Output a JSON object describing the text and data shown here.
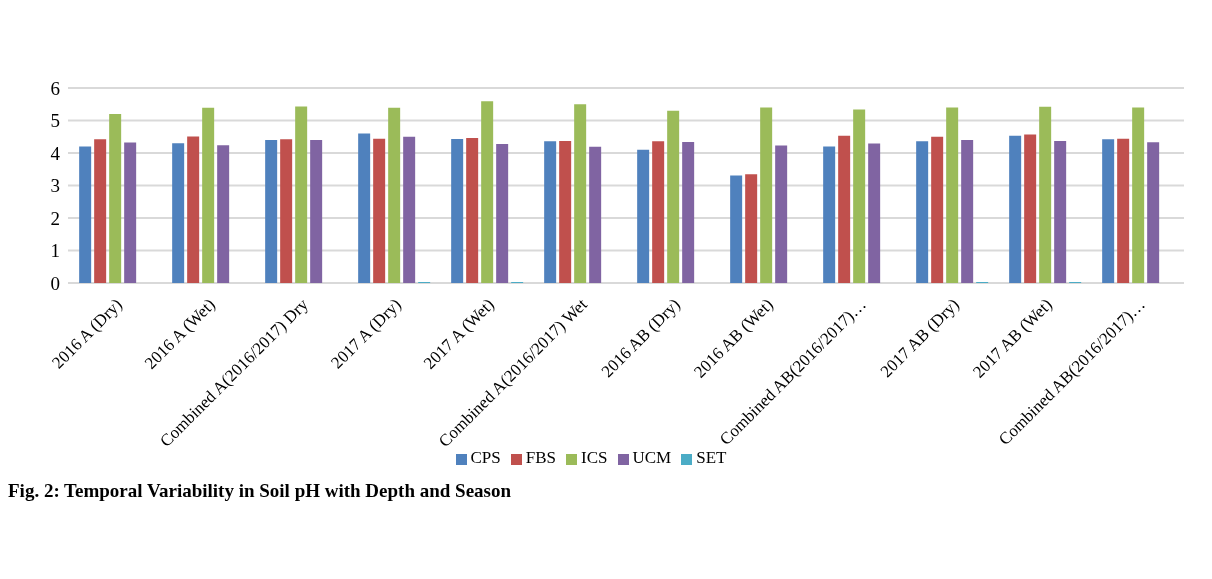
{
  "chart_data": {
    "type": "bar",
    "title": "Fig. 2: Temporal Variability in Soil pH with Depth  and Season",
    "categories": [
      "2016 A (Dry)",
      "2016 A (Wet)",
      "Combined A(2016/2017) Dry",
      "2017 A (Dry)",
      "2017 A (Wet)",
      "Combined A(2016/2017) Wet",
      "2016 AB (Dry)",
      "2016 AB (Wet)",
      "Combined AB(2016/2017)…",
      "2017 AB (Dry)",
      "2017 AB (Wet)",
      "Combined AB(2016/2017)…"
    ],
    "series": [
      {
        "name": "CPS",
        "color": "#4f81bd",
        "values": [
          4.2,
          4.3,
          4.4,
          4.6,
          4.43,
          4.36,
          4.1,
          3.31,
          4.2,
          4.36,
          4.53,
          4.42
        ]
      },
      {
        "name": "FBS",
        "color": "#c0504d",
        "values": [
          4.42,
          4.51,
          4.42,
          4.44,
          4.46,
          4.37,
          4.36,
          3.35,
          4.53,
          4.5,
          4.57,
          4.44
        ]
      },
      {
        "name": "ICS",
        "color": "#9bbb59",
        "values": [
          5.2,
          5.39,
          5.43,
          5.39,
          5.59,
          5.5,
          5.3,
          5.4,
          5.34,
          5.4,
          5.42,
          5.4
        ]
      },
      {
        "name": "UCM",
        "color": "#8064a2",
        "values": [
          4.32,
          4.24,
          4.4,
          4.5,
          4.28,
          4.19,
          4.34,
          4.23,
          4.29,
          4.4,
          4.37,
          4.33
        ]
      },
      {
        "name": "SET",
        "color": "#4bacc6",
        "values": [
          0,
          0,
          0,
          0.03,
          0.03,
          0,
          0,
          0,
          0,
          0.03,
          0.03,
          0
        ]
      }
    ],
    "ylim": [
      0,
      6
    ],
    "yticks": [
      0,
      1,
      2,
      3,
      4,
      5,
      6
    ],
    "grid": "y",
    "legend": "bottom"
  }
}
